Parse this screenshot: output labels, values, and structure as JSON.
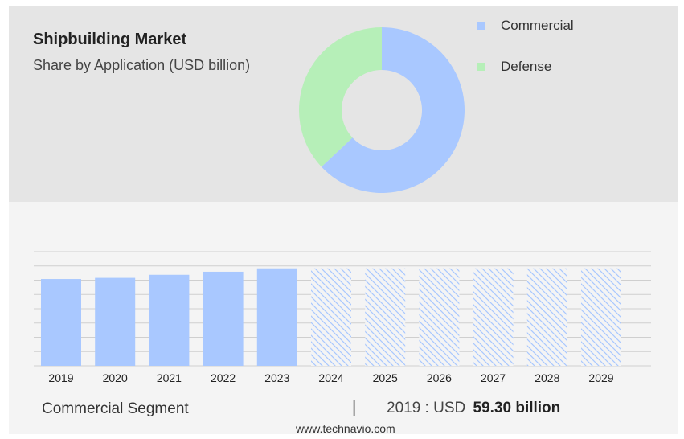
{
  "header": {
    "title": "Shipbuilding Market",
    "subtitle": "Share by Application (USD billion)"
  },
  "colors": {
    "commercial": "#a9c8ff",
    "defense": "#b6efb8",
    "forecast_hatch": "#a9c8ff"
  },
  "chart_data": [
    {
      "type": "pie",
      "variant": "donut",
      "legend_position": "top-right",
      "series": [
        {
          "name": "Commercial",
          "value": 63
        },
        {
          "name": "Defense",
          "value": 37
        }
      ]
    },
    {
      "type": "bar",
      "categories": [
        "2019",
        "2020",
        "2021",
        "2022",
        "2023",
        "2024",
        "2025",
        "2026",
        "2027",
        "2028",
        "2029"
      ],
      "values": [
        59.3,
        60.1,
        62.2,
        64.3,
        66.6,
        66.6,
        66.6,
        66.6,
        66.6,
        66.6,
        66.6
      ],
      "forecast_from": "2024",
      "ylim": [
        0,
        78
      ],
      "grid": true
    }
  ],
  "footer": {
    "segment_label": "Commercial Segment",
    "separator": "|",
    "year_text": "2019 : USD",
    "value_text": "59.30 billion",
    "website": "www.technavio.com"
  }
}
